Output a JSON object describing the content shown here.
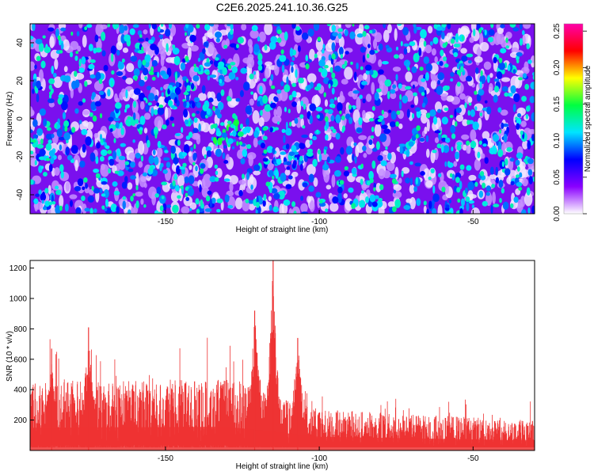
{
  "title": "C2E6.2025.241.10.36.G25",
  "chart_data": [
    {
      "type": "heatmap",
      "xlabel": "Height of straight line (km)",
      "ylabel": "Frequency (Hz)",
      "xlim": [
        -194,
        -30
      ],
      "ylim": [
        -50,
        50
      ],
      "xticks": [
        -150,
        -100,
        -50
      ],
      "yticks": [
        -40,
        -20,
        0,
        20,
        40
      ],
      "colorbar": {
        "label": "Normalized spectral amplitude",
        "range": [
          0,
          0.26
        ],
        "ticks": [
          0.0,
          0.05,
          0.1,
          0.15,
          0.2,
          0.25
        ],
        "colors": [
          "#ffffff",
          "#8a00ff",
          "#0000ff",
          "#00e5ff",
          "#00ff40",
          "#ffff00",
          "#ff0000",
          "#ff00aa"
        ]
      },
      "features": [
        {
          "x": -145,
          "y": 12,
          "amplitude": 0.13
        },
        {
          "x": -129,
          "y": -8,
          "amplitude": 0.16
        },
        {
          "x": -110,
          "y": -20,
          "amplitude": 0.12
        }
      ]
    },
    {
      "type": "area",
      "xlabel": "Height of straight line (km)",
      "ylabel": "SNR (10 * v/v)",
      "xlim": [
        -194,
        -30
      ],
      "ylim": [
        0,
        1250
      ],
      "xticks": [
        -150,
        -100,
        -50
      ],
      "yticks": [
        200,
        400,
        600,
        800,
        1000,
        1200
      ],
      "color": "#ee3333",
      "peaks": [
        {
          "x": -187,
          "y": 670
        },
        {
          "x": -175,
          "y": 810
        },
        {
          "x": -121,
          "y": 920
        },
        {
          "x": -115,
          "y": 1250
        },
        {
          "x": -107,
          "y": 740
        }
      ],
      "baseline": [
        {
          "x": -194,
          "y": 250
        },
        {
          "x": -130,
          "y": 260
        },
        {
          "x": -100,
          "y": 150
        },
        {
          "x": -30,
          "y": 110
        }
      ]
    }
  ]
}
